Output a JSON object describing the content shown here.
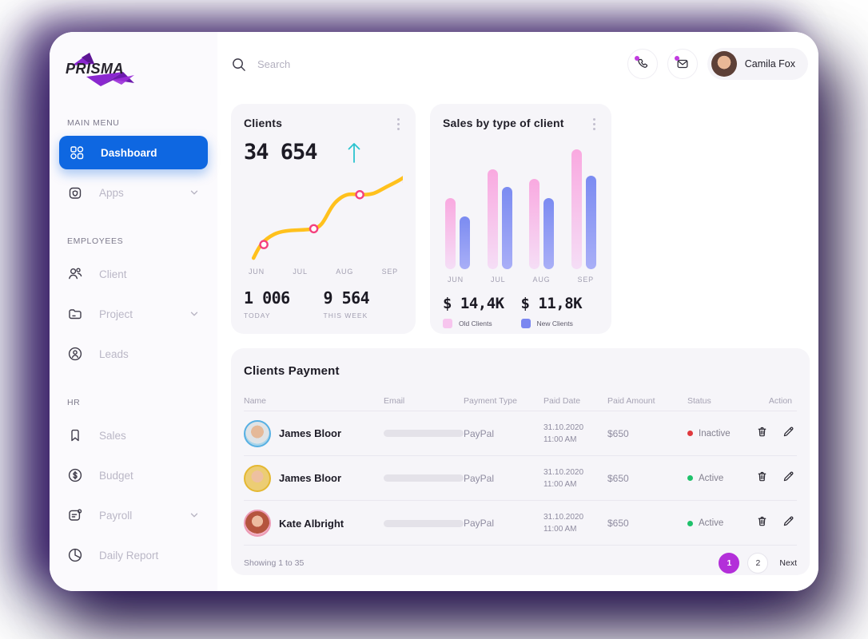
{
  "brand": {
    "name": "PRISMA"
  },
  "sidebar": {
    "sections": [
      {
        "label": "MAIN MENU",
        "items": [
          {
            "label": "Dashboard",
            "icon": "grid",
            "active": true,
            "chevron": false
          },
          {
            "label": "Apps",
            "icon": "apps",
            "active": false,
            "chevron": true
          }
        ]
      },
      {
        "label": "EMPLOYEES",
        "items": [
          {
            "label": "Client",
            "icon": "people",
            "active": false,
            "chevron": false
          },
          {
            "label": "Project",
            "icon": "folder",
            "active": false,
            "chevron": true
          },
          {
            "label": "Leads",
            "icon": "badge",
            "active": false,
            "chevron": false
          }
        ]
      },
      {
        "label": "HR",
        "items": [
          {
            "label": "Sales",
            "icon": "bookmark",
            "active": false,
            "chevron": false
          },
          {
            "label": "Budget",
            "icon": "dollar",
            "active": false,
            "chevron": false
          },
          {
            "label": "Payroll",
            "icon": "payroll",
            "active": false,
            "chevron": true
          },
          {
            "label": "Daily Report",
            "icon": "pie",
            "active": false,
            "chevron": false
          }
        ]
      }
    ]
  },
  "topbar": {
    "search_placeholder": "Search",
    "user_name": "Camila Fox"
  },
  "clients_card": {
    "title": "Clients",
    "value": "34 654",
    "stat1_value": "1 006",
    "stat1_label": "TODAY",
    "stat2_value": "9 564",
    "stat2_label": "THIS WEEK"
  },
  "sales_card": {
    "title": "Sales by type of client",
    "old_value": "$ 14,4K",
    "old_label": "Old Clients",
    "new_value": "$ 11,8K",
    "new_label": "New Clients"
  },
  "chart_data": [
    {
      "type": "line",
      "title": "Clients",
      "x": [
        "JUN",
        "JUL",
        "AUG",
        "SEP"
      ],
      "values_relative_pct": [
        15,
        32,
        66,
        78
      ],
      "note": "y-axis unlabeled; smooth rising curve with 4 markers",
      "line_color": "#ffc11d",
      "marker_color": "#f4407e"
    },
    {
      "type": "bar",
      "title": "Sales by type of client",
      "categories": [
        "JUN",
        "JUL",
        "AUG",
        "SEP"
      ],
      "series": [
        {
          "name": "Old Clients",
          "total_label": "$ 14,4K",
          "values_relative_pct": [
            59,
            83,
            75,
            100
          ],
          "color_top": "#f9a9e0",
          "color_bottom": "#f5def6",
          "legend_color": "#f7c5ee"
        },
        {
          "name": "New Clients",
          "total_label": "$ 11,8K",
          "values_relative_pct": [
            44,
            69,
            59,
            78
          ],
          "color_top": "#7b8bf1",
          "color_bottom": "#a9aff7",
          "legend_color": "#7b87f0"
        }
      ],
      "legend_position": "bottom",
      "grid": false
    }
  ],
  "table": {
    "title": "Clients Payment",
    "columns": [
      "Name",
      "Email",
      "Payment Type",
      "Paid Date",
      "Paid Amount",
      "Status",
      "Action"
    ],
    "rows": [
      {
        "name": "James Bloor",
        "payment_type": "PayPal",
        "paid_date": "31.10.2020",
        "paid_time": "11:00 AM",
        "paid_amount": "$650",
        "status": "Inactive",
        "status_color": "#e0393e",
        "avatar_ring": "#57b0e3",
        "avatar_style": "radial-gradient(circle at 50% 42%, #e5b998 0 34%, #dfe3e6 35% 64%, #a7d4ea 65% 100%)"
      },
      {
        "name": "James Bloor",
        "payment_type": "PayPal",
        "paid_date": "31.10.2020",
        "paid_time": "11:00 AM",
        "paid_amount": "$650",
        "status": "Active",
        "status_color": "#1fc16b",
        "avatar_ring": "#e4b832",
        "avatar_style": "radial-gradient(circle at 50% 42%, #eec0a0 0 32%, #eccd74 33% 100%)"
      },
      {
        "name": "Kate Albright",
        "payment_type": "PayPal",
        "paid_date": "31.10.2020",
        "paid_time": "11:00 AM",
        "paid_amount": "$650",
        "status": "Active",
        "status_color": "#1fc16b",
        "avatar_ring": "#ec9ab4",
        "avatar_style": "radial-gradient(circle at 50% 42%, #edbba0 0 30%, #b5543e 31% 66%, #f3b1c4 67% 100%)"
      }
    ]
  },
  "footer": {
    "showing": "Showing 1 to 35",
    "pages": [
      {
        "label": "1",
        "active": true
      },
      {
        "label": "2",
        "active": false
      }
    ],
    "next_label": "Next"
  },
  "colors": {
    "accent_blue": "#0e67e1",
    "pagination_purple": "#b32fd9",
    "notification_dot": "#c13be0",
    "arrow_up_teal": "#2cc4cf"
  }
}
